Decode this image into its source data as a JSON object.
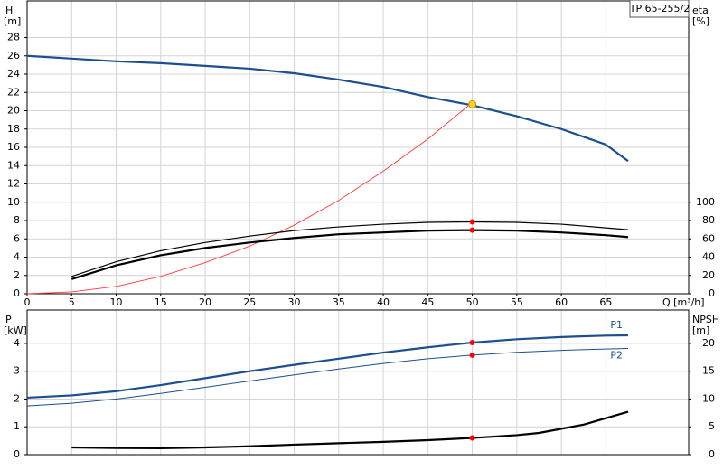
{
  "chart_data": [
    {
      "type": "line",
      "title": "TP 65-255/2",
      "ylabel": "H",
      "yunit": "[m]",
      "y2label": "eta",
      "y2unit": "[%]",
      "xlabel": "Q [m³/h]",
      "xlim": [
        0,
        74.3
      ],
      "xticks": [
        0,
        5,
        10,
        15,
        20,
        25,
        30,
        35,
        40,
        45,
        50,
        55,
        60,
        65
      ],
      "ylim": [
        0,
        32
      ],
      "yticks": [
        0,
        2,
        4,
        6,
        8,
        10,
        12,
        14,
        16,
        18,
        20,
        22,
        24,
        26,
        28
      ],
      "y2lim": [
        0,
        320
      ],
      "y2ticks": [
        0,
        20,
        40,
        60,
        80,
        100
      ],
      "grid": true,
      "series": [
        {
          "color": "#1b4f8f",
          "line_width": 2.2,
          "x": [
            0,
            5,
            10,
            15,
            20,
            25,
            30,
            35,
            40,
            45,
            50,
            55,
            60,
            65,
            67.5
          ],
          "values": [
            26,
            25.7,
            25.4,
            25.2,
            24.9,
            24.6,
            24.1,
            23.4,
            22.6,
            21.5,
            20.6,
            19.4,
            18,
            16.3,
            14.5
          ]
        },
        {
          "color": "#ff3a3a",
          "line_width": 0.9,
          "x": [
            0,
            5,
            10,
            15,
            20,
            25,
            30,
            35,
            40,
            45,
            50
          ],
          "values": [
            0,
            0.2,
            0.8,
            1.9,
            3.4,
            5.2,
            7.5,
            10.2,
            13.4,
            16.9,
            20.9
          ]
        },
        {
          "color": "#000000",
          "line_width": 1.2,
          "axis": "y2",
          "x": [
            5,
            10,
            15,
            20,
            25,
            30,
            35,
            40,
            45,
            50,
            55,
            60,
            65,
            67.5
          ],
          "values": [
            19,
            35,
            47,
            56,
            63,
            69,
            73,
            76,
            78,
            78.5,
            78,
            76,
            72,
            70
          ]
        },
        {
          "color": "#000000",
          "line_width": 2.2,
          "axis": "y2",
          "x": [
            5,
            10,
            15,
            20,
            25,
            30,
            35,
            40,
            45,
            50,
            55,
            60,
            65,
            67.5
          ],
          "values": [
            16,
            31,
            42,
            50,
            56,
            61,
            65,
            67,
            69,
            69.5,
            69,
            67,
            64,
            62
          ]
        }
      ],
      "points": [
        {
          "x": 50,
          "y": 20.7,
          "color": "#ffd21f"
        },
        {
          "x": 50,
          "y": 78.5,
          "color": "#ff0000",
          "axis": "y2"
        },
        {
          "x": 50,
          "y": 69.5,
          "color": "#ff0000",
          "axis": "y2"
        }
      ]
    },
    {
      "type": "line",
      "ylabel": "P",
      "yunit": "[kW]",
      "y2label": "NPSH",
      "y2unit": "[m]",
      "xlim": [
        0,
        74.3
      ],
      "ylim": [
        0,
        5.2
      ],
      "yticks": [
        0,
        1,
        2,
        3,
        4
      ],
      "y2lim": [
        0,
        26
      ],
      "y2ticks": [
        0,
        5,
        10,
        15,
        20
      ],
      "grid": true,
      "series": [
        {
          "name": "P1",
          "color": "#1b4f8f",
          "line_width": 2.2,
          "x": [
            0,
            5,
            10,
            15,
            20,
            25,
            30,
            35,
            40,
            45,
            50,
            55,
            60,
            65,
            67.5
          ],
          "values": [
            2.05,
            2.13,
            2.28,
            2.5,
            2.75,
            3.0,
            3.23,
            3.45,
            3.67,
            3.86,
            4.03,
            4.15,
            4.23,
            4.28,
            4.29
          ]
        },
        {
          "name": "P2",
          "color": "#1b4f8f",
          "line_width": 1,
          "x": [
            0,
            5,
            10,
            15,
            20,
            25,
            30,
            35,
            40,
            45,
            50,
            55,
            60,
            65,
            67.5
          ],
          "values": [
            1.75,
            1.85,
            2.0,
            2.2,
            2.42,
            2.65,
            2.87,
            3.08,
            3.28,
            3.45,
            3.58,
            3.68,
            3.75,
            3.8,
            3.82
          ]
        },
        {
          "color": "#000000",
          "line_width": 2.2,
          "axis": "y2",
          "x": [
            5,
            10,
            15,
            20,
            25,
            30,
            35,
            40,
            45,
            50,
            55,
            57.5,
            62.5,
            67.5
          ],
          "values": [
            1.3,
            1.2,
            1.15,
            1.3,
            1.5,
            1.8,
            2.05,
            2.3,
            2.6,
            3,
            3.5,
            3.9,
            5.4,
            7.7
          ]
        }
      ],
      "points": [
        {
          "x": 50,
          "y": 4.03,
          "color": "#ff0000"
        },
        {
          "x": 50,
          "y": 3.58,
          "color": "#ff0000"
        },
        {
          "x": 50,
          "y": 3,
          "color": "#ff0000",
          "axis": "y2"
        }
      ]
    }
  ]
}
